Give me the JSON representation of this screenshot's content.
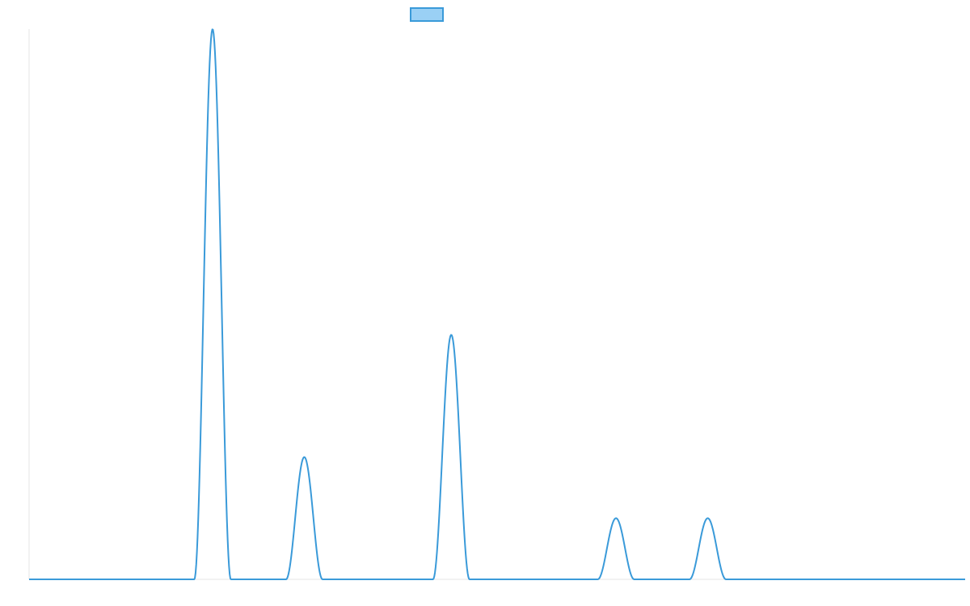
{
  "chart_data": {
    "type": "line",
    "title": "",
    "xlabel": "",
    "ylabel": "",
    "legend": {
      "placement": "top-center"
    },
    "grid": false,
    "xlim": [
      0,
      100
    ],
    "ylim": [
      0,
      90
    ],
    "series": [
      {
        "name": "",
        "color": "#3a9ad9",
        "legend_fill": "#9ad0f5",
        "peaks": [
          {
            "center": 19.6,
            "height": 90,
            "halfwidth": 1.95
          },
          {
            "center": 29.4,
            "height": 20,
            "halfwidth": 1.95
          },
          {
            "center": 45.1,
            "height": 40,
            "halfwidth": 1.95
          },
          {
            "center": 62.7,
            "height": 10,
            "halfwidth": 1.95
          },
          {
            "center": 72.5,
            "height": 10,
            "halfwidth": 1.95
          }
        ]
      }
    ]
  }
}
